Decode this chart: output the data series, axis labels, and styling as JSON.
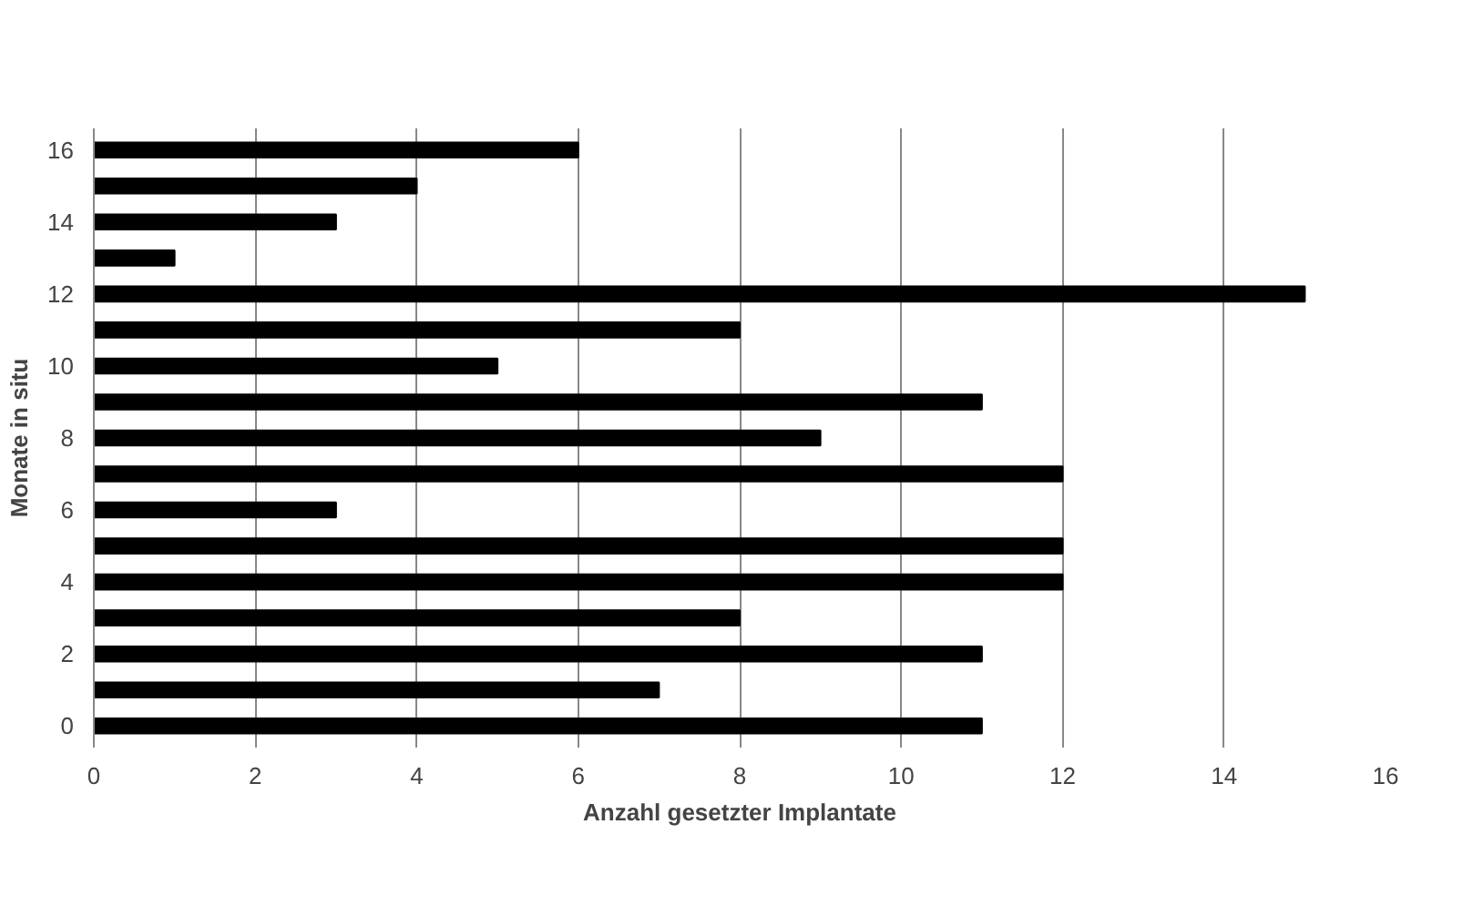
{
  "chart_data": {
    "type": "bar",
    "orientation": "horizontal",
    "xlabel": "Anzahl gesetzter Implantate",
    "ylabel": "Monate in situ",
    "categories": [
      "16",
      null,
      "14",
      null,
      "12",
      null,
      "10",
      null,
      "8",
      null,
      "6",
      null,
      "4",
      null,
      "2",
      null,
      "0"
    ],
    "values": [
      6,
      4,
      3,
      1,
      15,
      8,
      5,
      11,
      9,
      12,
      3,
      12,
      12,
      8,
      11,
      7,
      11
    ],
    "color": "#000000",
    "xlim": [
      0,
      16
    ],
    "xticks": [
      0,
      2,
      4,
      6,
      8,
      10,
      12,
      14,
      16
    ],
    "grid": "x"
  }
}
